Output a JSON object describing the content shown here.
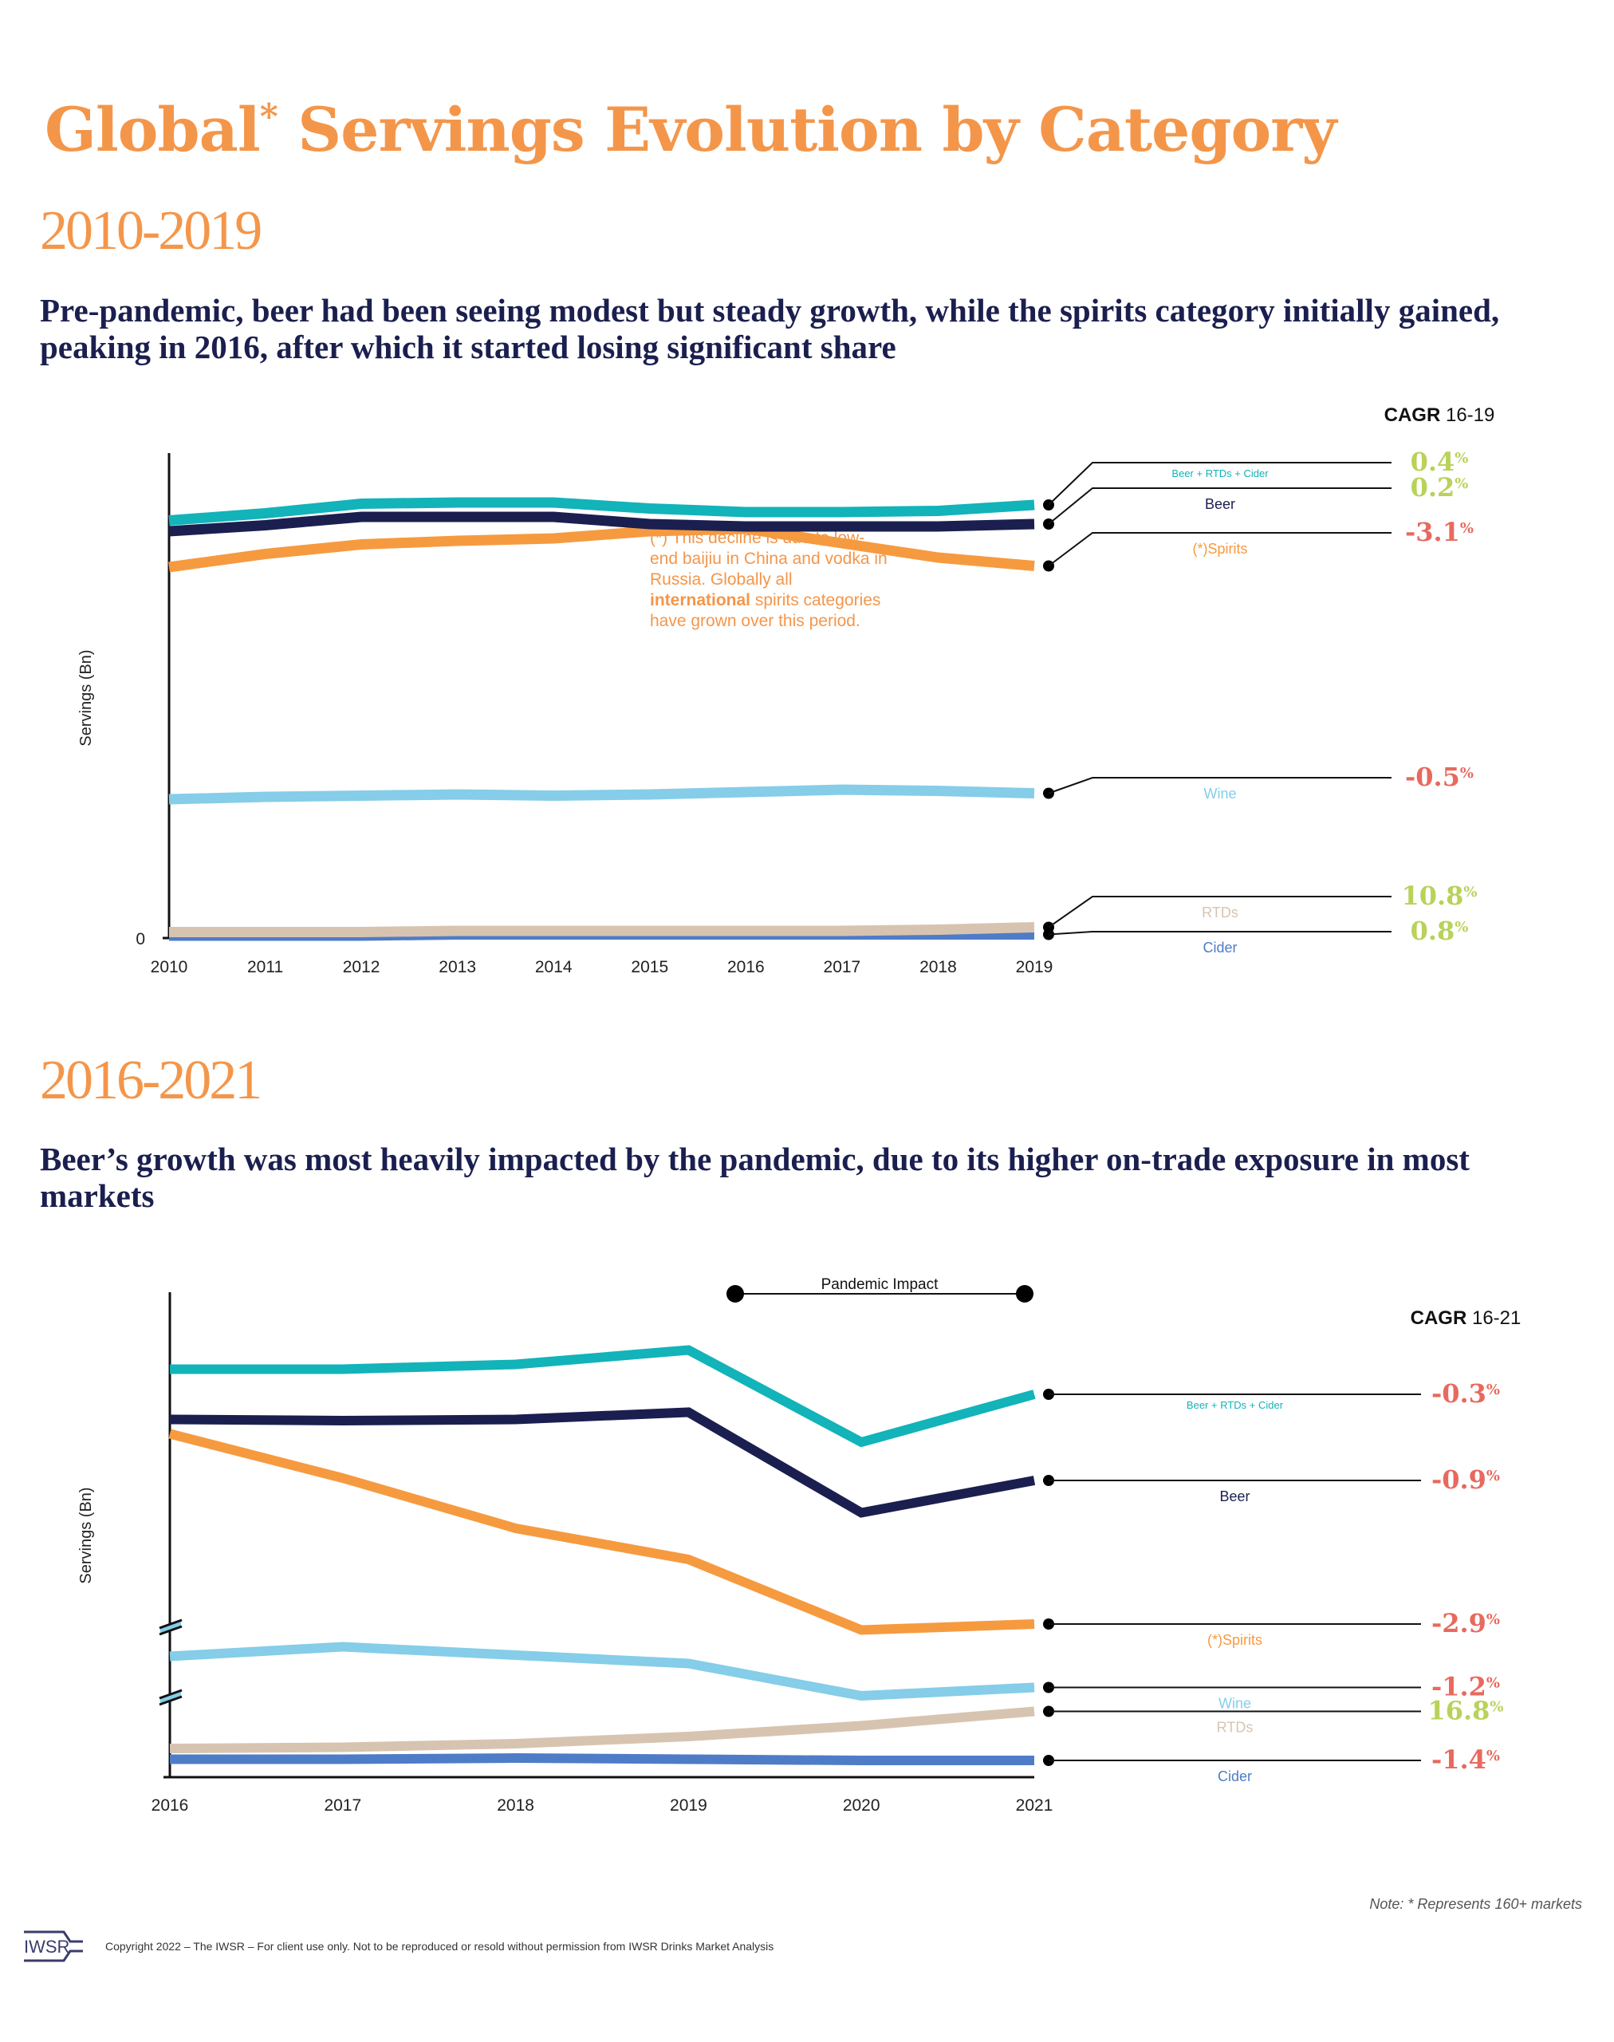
{
  "title": {
    "text": "Global",
    "asterisk": "*",
    "rest": " Servings Evolution by Category"
  },
  "section1": {
    "period": "2010-2019",
    "subtitle": "Pre-pandemic, beer had been seeing modest but steady growth, while the spirits category initially gained, peaking in 2016, after which it started losing significant share",
    "annotation": {
      "prefix": "(*) This decline is due to low-end baijiu in China and vodka in Russia. Globally all ",
      "bold": "international",
      "suffix": " spirits categories have grown over this period."
    }
  },
  "section2": {
    "period": "2016-2021",
    "subtitle": "Beer’s growth was most heavily impacted by the pandemic, due to its higher on-trade exposure in most markets"
  },
  "colors": {
    "beer_rtds_cider": "#12b3b9",
    "beer": "#1b1f4f",
    "spirits": "#f69a40",
    "wine": "#85cde8",
    "rtds": "#d7c4b0",
    "cider": "#4f7cc7",
    "positive": "#b8d25a",
    "negative": "#e8695e"
  },
  "chart_data": [
    {
      "type": "line",
      "title": "2010-2019",
      "xlabel": "",
      "ylabel": "Servings (Bn)",
      "y_ticks": [
        "0"
      ],
      "y_unit_note": "no scale shown; values are relative index estimates (0 = baseline)",
      "x": [
        "2010",
        "2011",
        "2012",
        "2013",
        "2014",
        "2015",
        "2016",
        "2017",
        "2018",
        "2019"
      ],
      "ylim": [
        0,
        380
      ],
      "cagr_header": {
        "bold": "CAGR",
        "rest": " 16-19"
      },
      "series": [
        {
          "name": "Beer + RTDs + Cider",
          "key": "beer_rtds_cider",
          "values": [
            349,
            355,
            363,
            364,
            364,
            359,
            356,
            356,
            357,
            362
          ],
          "cagr": "0.4",
          "cagr_sign": "positive"
        },
        {
          "name": "Beer",
          "key": "beer",
          "values": [
            340,
            345,
            352,
            352,
            352,
            346,
            344,
            344,
            344,
            346
          ],
          "cagr": "0.2",
          "cagr_sign": "positive"
        },
        {
          "name": "(*)Spirits",
          "key": "spirits",
          "values": [
            310,
            321,
            329,
            332,
            334,
            340,
            342,
            330,
            318,
            311
          ],
          "cagr": "-3.1",
          "cagr_sign": "negative"
        },
        {
          "name": "Wine",
          "key": "wine",
          "values": [
            116,
            118,
            119,
            120,
            119,
            120,
            122,
            124,
            123,
            121
          ],
          "cagr": "-0.5",
          "cagr_sign": "negative"
        },
        {
          "name": "RTDs",
          "key": "rtds",
          "values": [
            5,
            5,
            5,
            6,
            6,
            6,
            6,
            6,
            7,
            9
          ],
          "cagr": "10.8",
          "cagr_sign": "positive"
        },
        {
          "name": "Cider",
          "key": "cider",
          "values": [
            2,
            2,
            2,
            3,
            3,
            3,
            3,
            3,
            3,
            3
          ],
          "cagr": "0.8",
          "cagr_sign": "positive"
        }
      ]
    },
    {
      "type": "line",
      "title": "2016-2021",
      "xlabel": "",
      "ylabel": "Servings (Bn)",
      "y_unit_note": "broken axis; values are relative index estimates",
      "x": [
        "2016",
        "2017",
        "2018",
        "2019",
        "2020",
        "2021"
      ],
      "ylim": [
        0,
        380
      ],
      "annotation": "Pandemic Impact",
      "annotation_range": [
        "2019",
        "2021"
      ],
      "cagr_header": {
        "bold": "CAGR",
        "rest": " 16-21"
      },
      "series": [
        {
          "name": "Beer + RTDs + Cider",
          "key": "beer_rtds_cider",
          "values": [
            341,
            341,
            345,
            357,
            280,
            320
          ],
          "cagr": "-0.3",
          "cagr_sign": "negative"
        },
        {
          "name": "Beer",
          "key": "beer",
          "values": [
            299,
            298,
            299,
            305,
            221,
            248
          ],
          "cagr": "-0.9",
          "cagr_sign": "negative"
        },
        {
          "name": "(*)Spirits",
          "key": "spirits",
          "values": [
            287,
            250,
            208,
            182,
            123,
            128
          ],
          "cagr": "-2.9",
          "cagr_sign": "negative"
        },
        {
          "name": "Wine",
          "key": "wine",
          "values": [
            101,
            109,
            102,
            95,
            68,
            75
          ],
          "cagr": "-1.2",
          "cagr_sign": "negative"
        },
        {
          "name": "RTDs",
          "key": "rtds",
          "values": [
            24,
            25,
            28,
            34,
            43,
            55
          ],
          "cagr": "16.8",
          "cagr_sign": "positive"
        },
        {
          "name": "Cider",
          "key": "cider",
          "values": [
            15,
            15,
            16,
            15,
            14,
            14
          ],
          "cagr": "-1.4",
          "cagr_sign": "negative"
        }
      ]
    }
  ],
  "footer": {
    "note": "Note: * Represents 160+ markets",
    "logo": "IWSR",
    "copyright": "Copyright 2022 – The IWSR – For client use only. Not to be reproduced or resold without permission from IWSR Drinks Market Analysis"
  }
}
